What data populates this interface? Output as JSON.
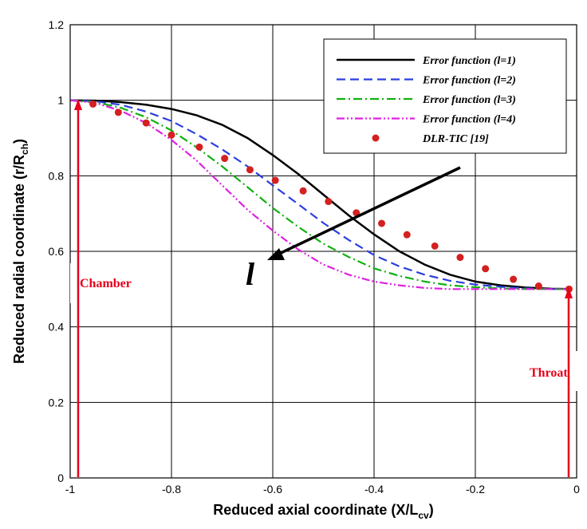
{
  "chart_data": {
    "type": "line",
    "xlabel": {
      "main": "Reduced axial coordinate (X/L",
      "sub": "cv",
      "end": ")"
    },
    "ylabel": {
      "main": "Reduced radial coordinate (r/R",
      "sub": "ch",
      "end": ")"
    },
    "xlim": [
      -1,
      0
    ],
    "ylim": [
      0,
      1.2
    ],
    "xticks": [
      -1,
      -0.8,
      -0.6,
      -0.4,
      -0.2,
      0
    ],
    "xtick_labels": [
      "-1",
      "-0.8",
      "-0.6",
      "-0.4",
      "-0.2",
      "0"
    ],
    "yticks": [
      0,
      0.2,
      0.4,
      0.6,
      0.8,
      1,
      1.2
    ],
    "ytick_labels": [
      "0",
      "0.2",
      "0.4",
      "0.6",
      "0.8",
      "1",
      "1.2"
    ],
    "grid": true,
    "legend_position": "top-right",
    "series": [
      {
        "name": "Error function (l=1)",
        "color": "#000000",
        "style": "solid",
        "x": [
          -1,
          -0.95,
          -0.9,
          -0.85,
          -0.8,
          -0.75,
          -0.7,
          -0.65,
          -0.6,
          -0.55,
          -0.5,
          -0.45,
          -0.4,
          -0.35,
          -0.3,
          -0.25,
          -0.2,
          -0.15,
          -0.1,
          -0.05,
          -0.01
        ],
        "y": [
          1.0,
          0.999,
          0.995,
          0.988,
          0.977,
          0.96,
          0.935,
          0.9,
          0.855,
          0.805,
          0.75,
          0.695,
          0.645,
          0.6,
          0.565,
          0.538,
          0.52,
          0.51,
          0.504,
          0.501,
          0.5
        ]
      },
      {
        "name": "Error function (l=2)",
        "color": "#2a3fe0",
        "style": "dash",
        "x": [
          -1,
          -0.95,
          -0.9,
          -0.85,
          -0.8,
          -0.75,
          -0.7,
          -0.65,
          -0.6,
          -0.55,
          -0.5,
          -0.45,
          -0.4,
          -0.35,
          -0.3,
          -0.25,
          -0.2,
          -0.15,
          -0.1,
          -0.05,
          -0.01
        ],
        "y": [
          1.0,
          0.997,
          0.988,
          0.97,
          0.945,
          0.91,
          0.87,
          0.825,
          0.775,
          0.725,
          0.675,
          0.63,
          0.59,
          0.56,
          0.538,
          0.522,
          0.512,
          0.506,
          0.502,
          0.5,
          0.5
        ]
      },
      {
        "name": "Error function (l=3)",
        "color": "#10b010",
        "style": "dashdot",
        "x": [
          -1,
          -0.95,
          -0.9,
          -0.85,
          -0.8,
          -0.75,
          -0.7,
          -0.65,
          -0.6,
          -0.55,
          -0.5,
          -0.45,
          -0.4,
          -0.35,
          -0.3,
          -0.25,
          -0.2,
          -0.15,
          -0.1,
          -0.05,
          -0.01
        ],
        "y": [
          1.0,
          0.995,
          0.98,
          0.955,
          0.92,
          0.875,
          0.825,
          0.77,
          0.715,
          0.665,
          0.62,
          0.585,
          0.555,
          0.535,
          0.52,
          0.51,
          0.505,
          0.502,
          0.5,
          0.5,
          0.5
        ]
      },
      {
        "name": "Error function (l=4)",
        "color": "#e020e0",
        "style": "dashdotdot",
        "x": [
          -1,
          -0.95,
          -0.9,
          -0.85,
          -0.8,
          -0.75,
          -0.7,
          -0.65,
          -0.6,
          -0.55,
          -0.5,
          -0.45,
          -0.4,
          -0.35,
          -0.3,
          -0.25,
          -0.2,
          -0.15,
          -0.1,
          -0.05,
          -0.01
        ],
        "y": [
          1.0,
          0.993,
          0.972,
          0.94,
          0.895,
          0.84,
          0.775,
          0.71,
          0.655,
          0.605,
          0.565,
          0.538,
          0.52,
          0.51,
          0.503,
          0.5,
          0.5,
          0.5,
          0.5,
          0.5,
          0.5
        ]
      },
      {
        "name": "DLR-TIC [19]",
        "color": "#d42020",
        "style": "markers",
        "x": [
          -0.955,
          -0.905,
          -0.85,
          -0.8,
          -0.745,
          -0.695,
          -0.645,
          -0.595,
          -0.54,
          -0.49,
          -0.435,
          -0.385,
          -0.335,
          -0.28,
          -0.23,
          -0.18,
          -0.125,
          -0.075,
          -0.015
        ],
        "y": [
          0.99,
          0.968,
          0.94,
          0.908,
          0.876,
          0.846,
          0.816,
          0.788,
          0.76,
          0.732,
          0.702,
          0.674,
          0.644,
          0.614,
          0.584,
          0.554,
          0.526,
          0.508,
          0.5
        ]
      }
    ],
    "annotations": {
      "chamber": "Chamber",
      "throat": "Throat",
      "arrow_label": "l"
    }
  }
}
